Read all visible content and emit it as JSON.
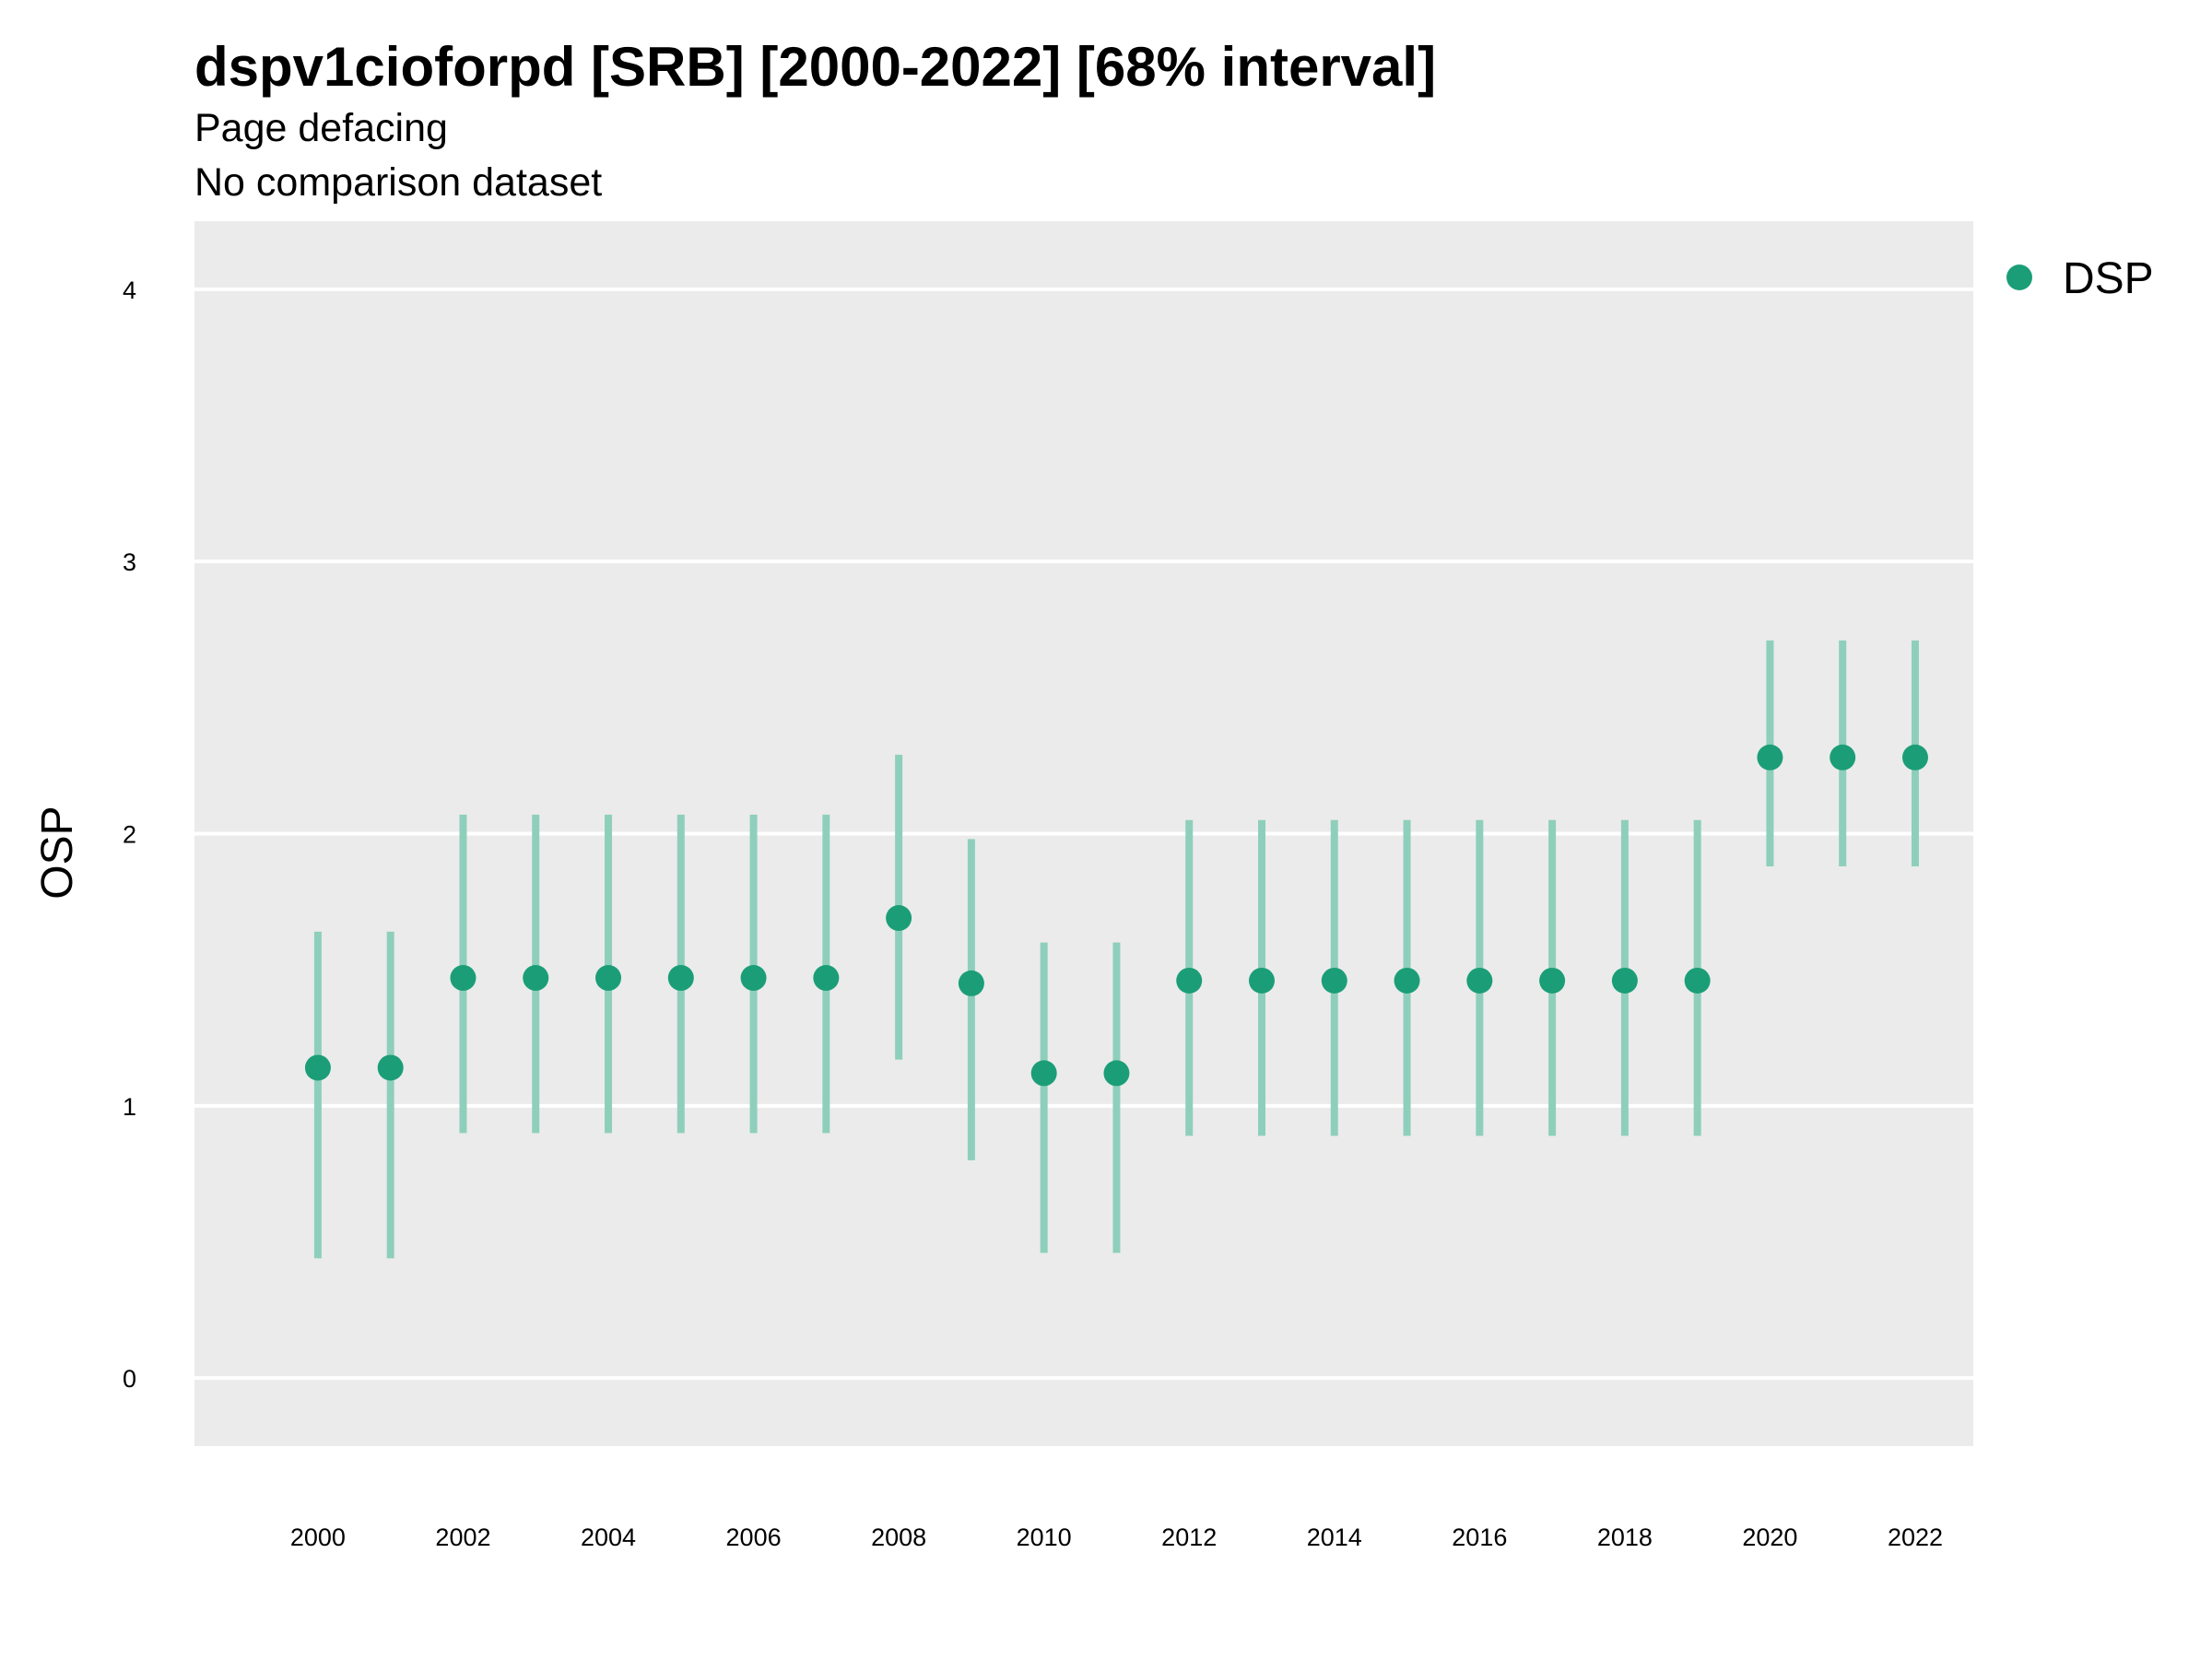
{
  "header": {
    "title": "dspv1cioforpd [SRB] [2000-2022] [68% interval]",
    "subtitle_1": "Page defacing",
    "subtitle_2": "No comparison dataset"
  },
  "colors": {
    "panel_background": "#ebebeb",
    "grid": "#ffffff",
    "point": "#1b9e77",
    "interval": "#8ecfbb"
  },
  "chart_data": {
    "type": "scatter",
    "title": "dspv1cioforpd [SRB] [2000-2022] [68% interval]",
    "subtitle": "Page defacing",
    "ylabel": "OSP",
    "xlabel": "",
    "ylim": [
      -0.25,
      4.25
    ],
    "yticks": [
      0,
      1,
      2,
      3,
      4
    ],
    "xticks": [
      2000,
      2002,
      2004,
      2006,
      2008,
      2010,
      2012,
      2014,
      2016,
      2018,
      2020,
      2022
    ],
    "grid": "horizontal major",
    "legend_position": "right",
    "series": [
      {
        "name": "DSP",
        "x": [
          2000,
          2001,
          2002,
          2003,
          2004,
          2005,
          2006,
          2007,
          2008,
          2009,
          2010,
          2011,
          2012,
          2013,
          2014,
          2015,
          2016,
          2017,
          2018,
          2019,
          2020,
          2021,
          2022
        ],
        "y": [
          1.14,
          1.14,
          1.47,
          1.47,
          1.47,
          1.47,
          1.47,
          1.47,
          1.69,
          1.45,
          1.12,
          1.12,
          1.46,
          1.46,
          1.46,
          1.46,
          1.46,
          1.46,
          1.46,
          1.46,
          2.28,
          2.28,
          2.28
        ],
        "lower": [
          0.44,
          0.44,
          0.9,
          0.9,
          0.9,
          0.9,
          0.9,
          0.9,
          1.17,
          0.8,
          0.46,
          0.46,
          0.89,
          0.89,
          0.89,
          0.89,
          0.89,
          0.89,
          0.89,
          0.89,
          1.88,
          1.88,
          1.88
        ],
        "upper": [
          1.64,
          1.64,
          2.07,
          2.07,
          2.07,
          2.07,
          2.07,
          2.07,
          2.29,
          1.98,
          1.6,
          1.6,
          2.05,
          2.05,
          2.05,
          2.05,
          2.05,
          2.05,
          2.05,
          2.05,
          2.71,
          2.71,
          2.71
        ]
      }
    ]
  }
}
